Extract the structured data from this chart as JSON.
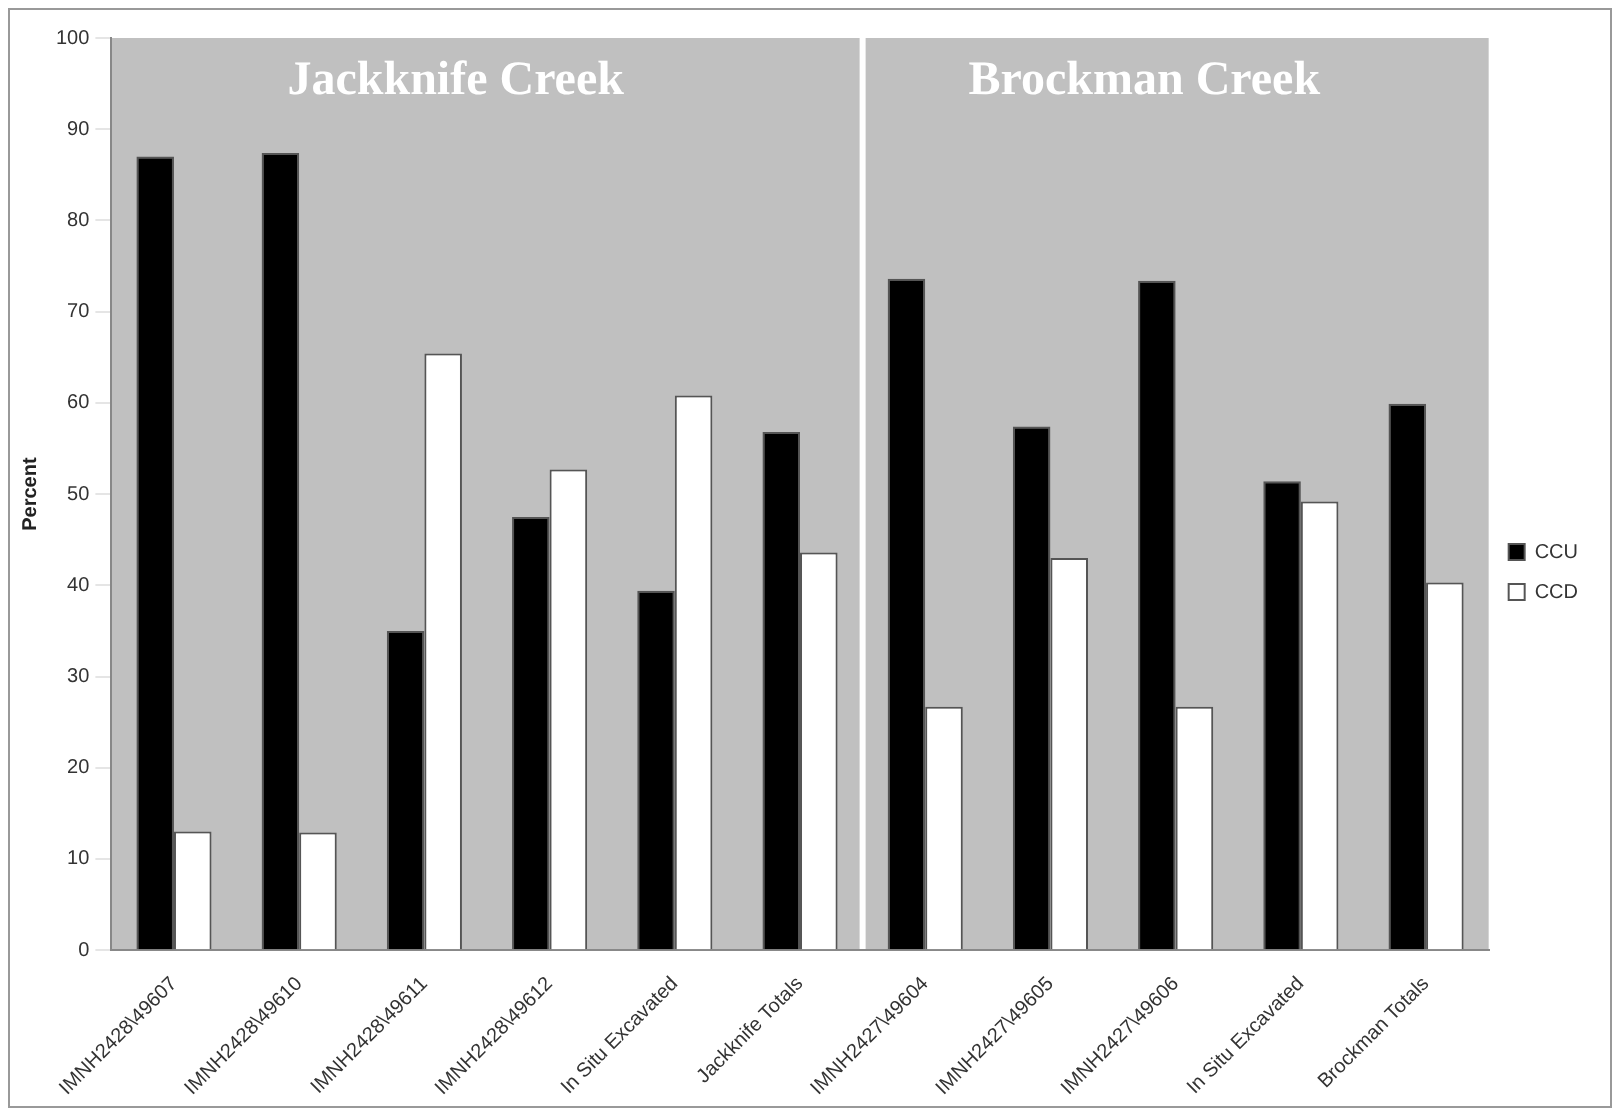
{
  "chart_data": {
    "type": "bar",
    "ylabel": "Percent",
    "categories": [
      "IMNH2428\\49607",
      "IMNH2428\\49610",
      "IMNH2428\\49611",
      "IMNH2428\\49612",
      "In Situ Excavated",
      "Jackknife Totals",
      "IMNH2427\\49604",
      "IMNH2427\\49605",
      "IMNH2427\\49606",
      "In Situ Excavated",
      "Brockman Totals"
    ],
    "series": [
      {
        "name": "CCU",
        "color": "#000000",
        "values": [
          87,
          87.4,
          35,
          47.5,
          39.4,
          56.8,
          73.6,
          57.4,
          73.4,
          51.4,
          59.9
        ]
      },
      {
        "name": "CCD",
        "color": "#ffffff",
        "values": [
          13,
          12.9,
          65.4,
          52.7,
          60.8,
          43.6,
          26.7,
          43,
          26.7,
          49.2,
          40.3
        ]
      }
    ],
    "annotations": [
      "Jackknife Creek",
      "Brockman Creek"
    ],
    "ylim": [
      0,
      100
    ],
    "yticks": [
      0,
      10,
      20,
      30,
      40,
      50,
      60,
      70,
      80,
      90,
      100
    ],
    "grid": false,
    "legend": "right"
  }
}
